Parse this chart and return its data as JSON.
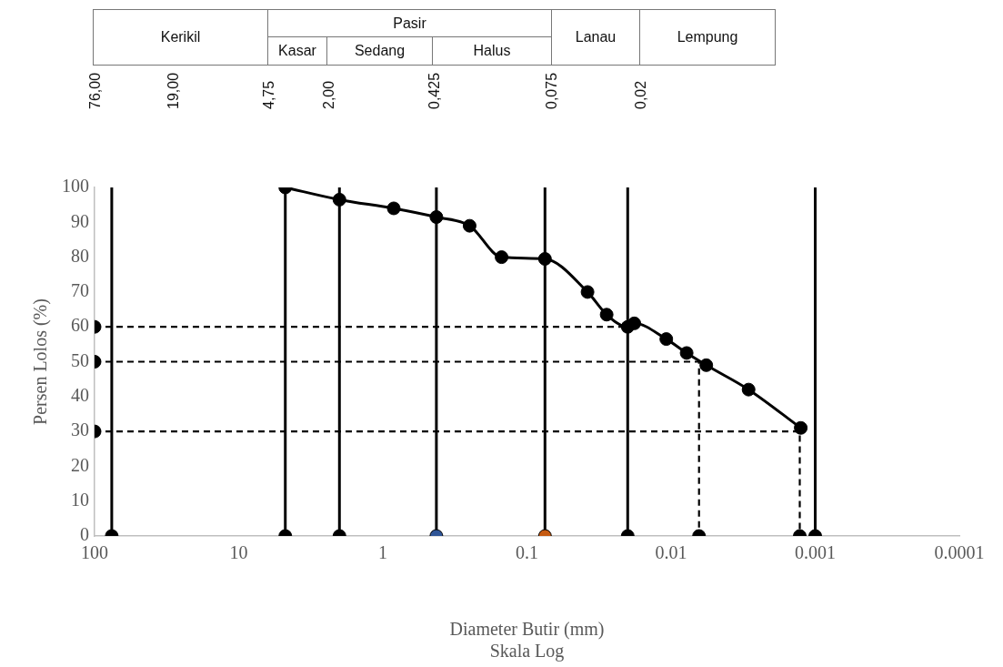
{
  "chart_data": {
    "type": "line",
    "xlabel": "Diameter Butir (mm)\nSkala Log",
    "ylabel": "Persen Lolos (%)",
    "log": "x",
    "xlim": [
      100,
      0.0001
    ],
    "xticks": [
      100,
      10,
      1,
      0.1,
      0.01,
      0.001,
      0.0001
    ],
    "ylim": [
      0,
      100
    ],
    "yticks": [
      0,
      10,
      20,
      30,
      40,
      50,
      60,
      70,
      80,
      90,
      100
    ],
    "grid": false,
    "legend": false,
    "marker": "circle",
    "annotations": [
      "Kerikil",
      "Pasir",
      "Kasar",
      "Sedang",
      "Halus",
      "Lanau",
      "Lempung",
      "76,00",
      "19,00",
      "4,75",
      "2,00",
      "0,425",
      "0,075",
      "0,02"
    ],
    "series": [
      {
        "color": "#000000",
        "x": [
          4.75,
          2,
          0.84,
          0.425,
          0.25,
          0.15,
          0.075,
          0.038,
          0.028,
          0.02,
          0.018,
          0.0108,
          0.0078,
          0.0057,
          0.0029,
          0.00126
        ],
        "values": [
          100,
          96.5,
          94,
          91.5,
          89,
          80,
          79.5,
          70,
          63.5,
          60,
          61,
          56.5,
          52.5,
          49,
          42,
          31
        ]
      },
      {
        "type": "line",
        "color": "#000000",
        "marker": "none",
        "x": [
          76,
          76
        ],
        "values": [
          0,
          100
        ]
      },
      {
        "type": "line",
        "color": "#000000",
        "marker": "none",
        "x": [
          4.75,
          4.75
        ],
        "values": [
          0,
          100
        ]
      },
      {
        "type": "line",
        "color": "#000000",
        "marker": "none",
        "x": [
          2,
          2
        ],
        "values": [
          0,
          100
        ]
      },
      {
        "type": "line",
        "color": "#000000",
        "marker": "none",
        "x": [
          0.425,
          0.425
        ],
        "values": [
          0,
          100
        ]
      },
      {
        "type": "line",
        "color": "#000000",
        "marker": "none",
        "x": [
          0.075,
          0.075
        ],
        "values": [
          0,
          100
        ]
      },
      {
        "type": "line",
        "color": "#000000",
        "marker": "none",
        "x": [
          0.02,
          0.02
        ],
        "values": [
          0,
          100
        ]
      },
      {
        "type": "line",
        "color": "#000000",
        "marker": "none",
        "x": [
          0.001,
          0.001
        ],
        "values": [
          0,
          100
        ]
      },
      {
        "type": "line",
        "color": "#000000",
        "marker": "none",
        "line_style": "dashed",
        "x": [
          100,
          0.02
        ],
        "values": [
          60,
          60
        ]
      },
      {
        "type": "line",
        "color": "#000000",
        "marker": "none",
        "line_style": "dashed",
        "x": [
          100,
          0.0064,
          0.0064
        ],
        "values": [
          50,
          50,
          0
        ]
      },
      {
        "type": "line",
        "color": "#000000",
        "marker": "none",
        "line_style": "dashed",
        "x": [
          100,
          0.00128,
          0.00128
        ],
        "values": [
          30,
          30,
          0
        ]
      },
      {
        "type": "scatter",
        "marker": "circle",
        "x": [
          76,
          4.75,
          2,
          0.425,
          0.075,
          0.02,
          0.0064,
          0.00128,
          0.001,
          100,
          100,
          100
        ],
        "values": [
          0,
          0,
          0,
          0,
          0,
          0,
          0,
          0,
          0,
          60,
          50,
          30
        ],
        "colors": [
          "#000000",
          "#000000",
          "#000000",
          "#2f5597",
          "#c55a11",
          "#000000",
          "#000000",
          "#000000",
          "#000000",
          "#000000",
          "#000000",
          "#000000"
        ]
      }
    ]
  }
}
